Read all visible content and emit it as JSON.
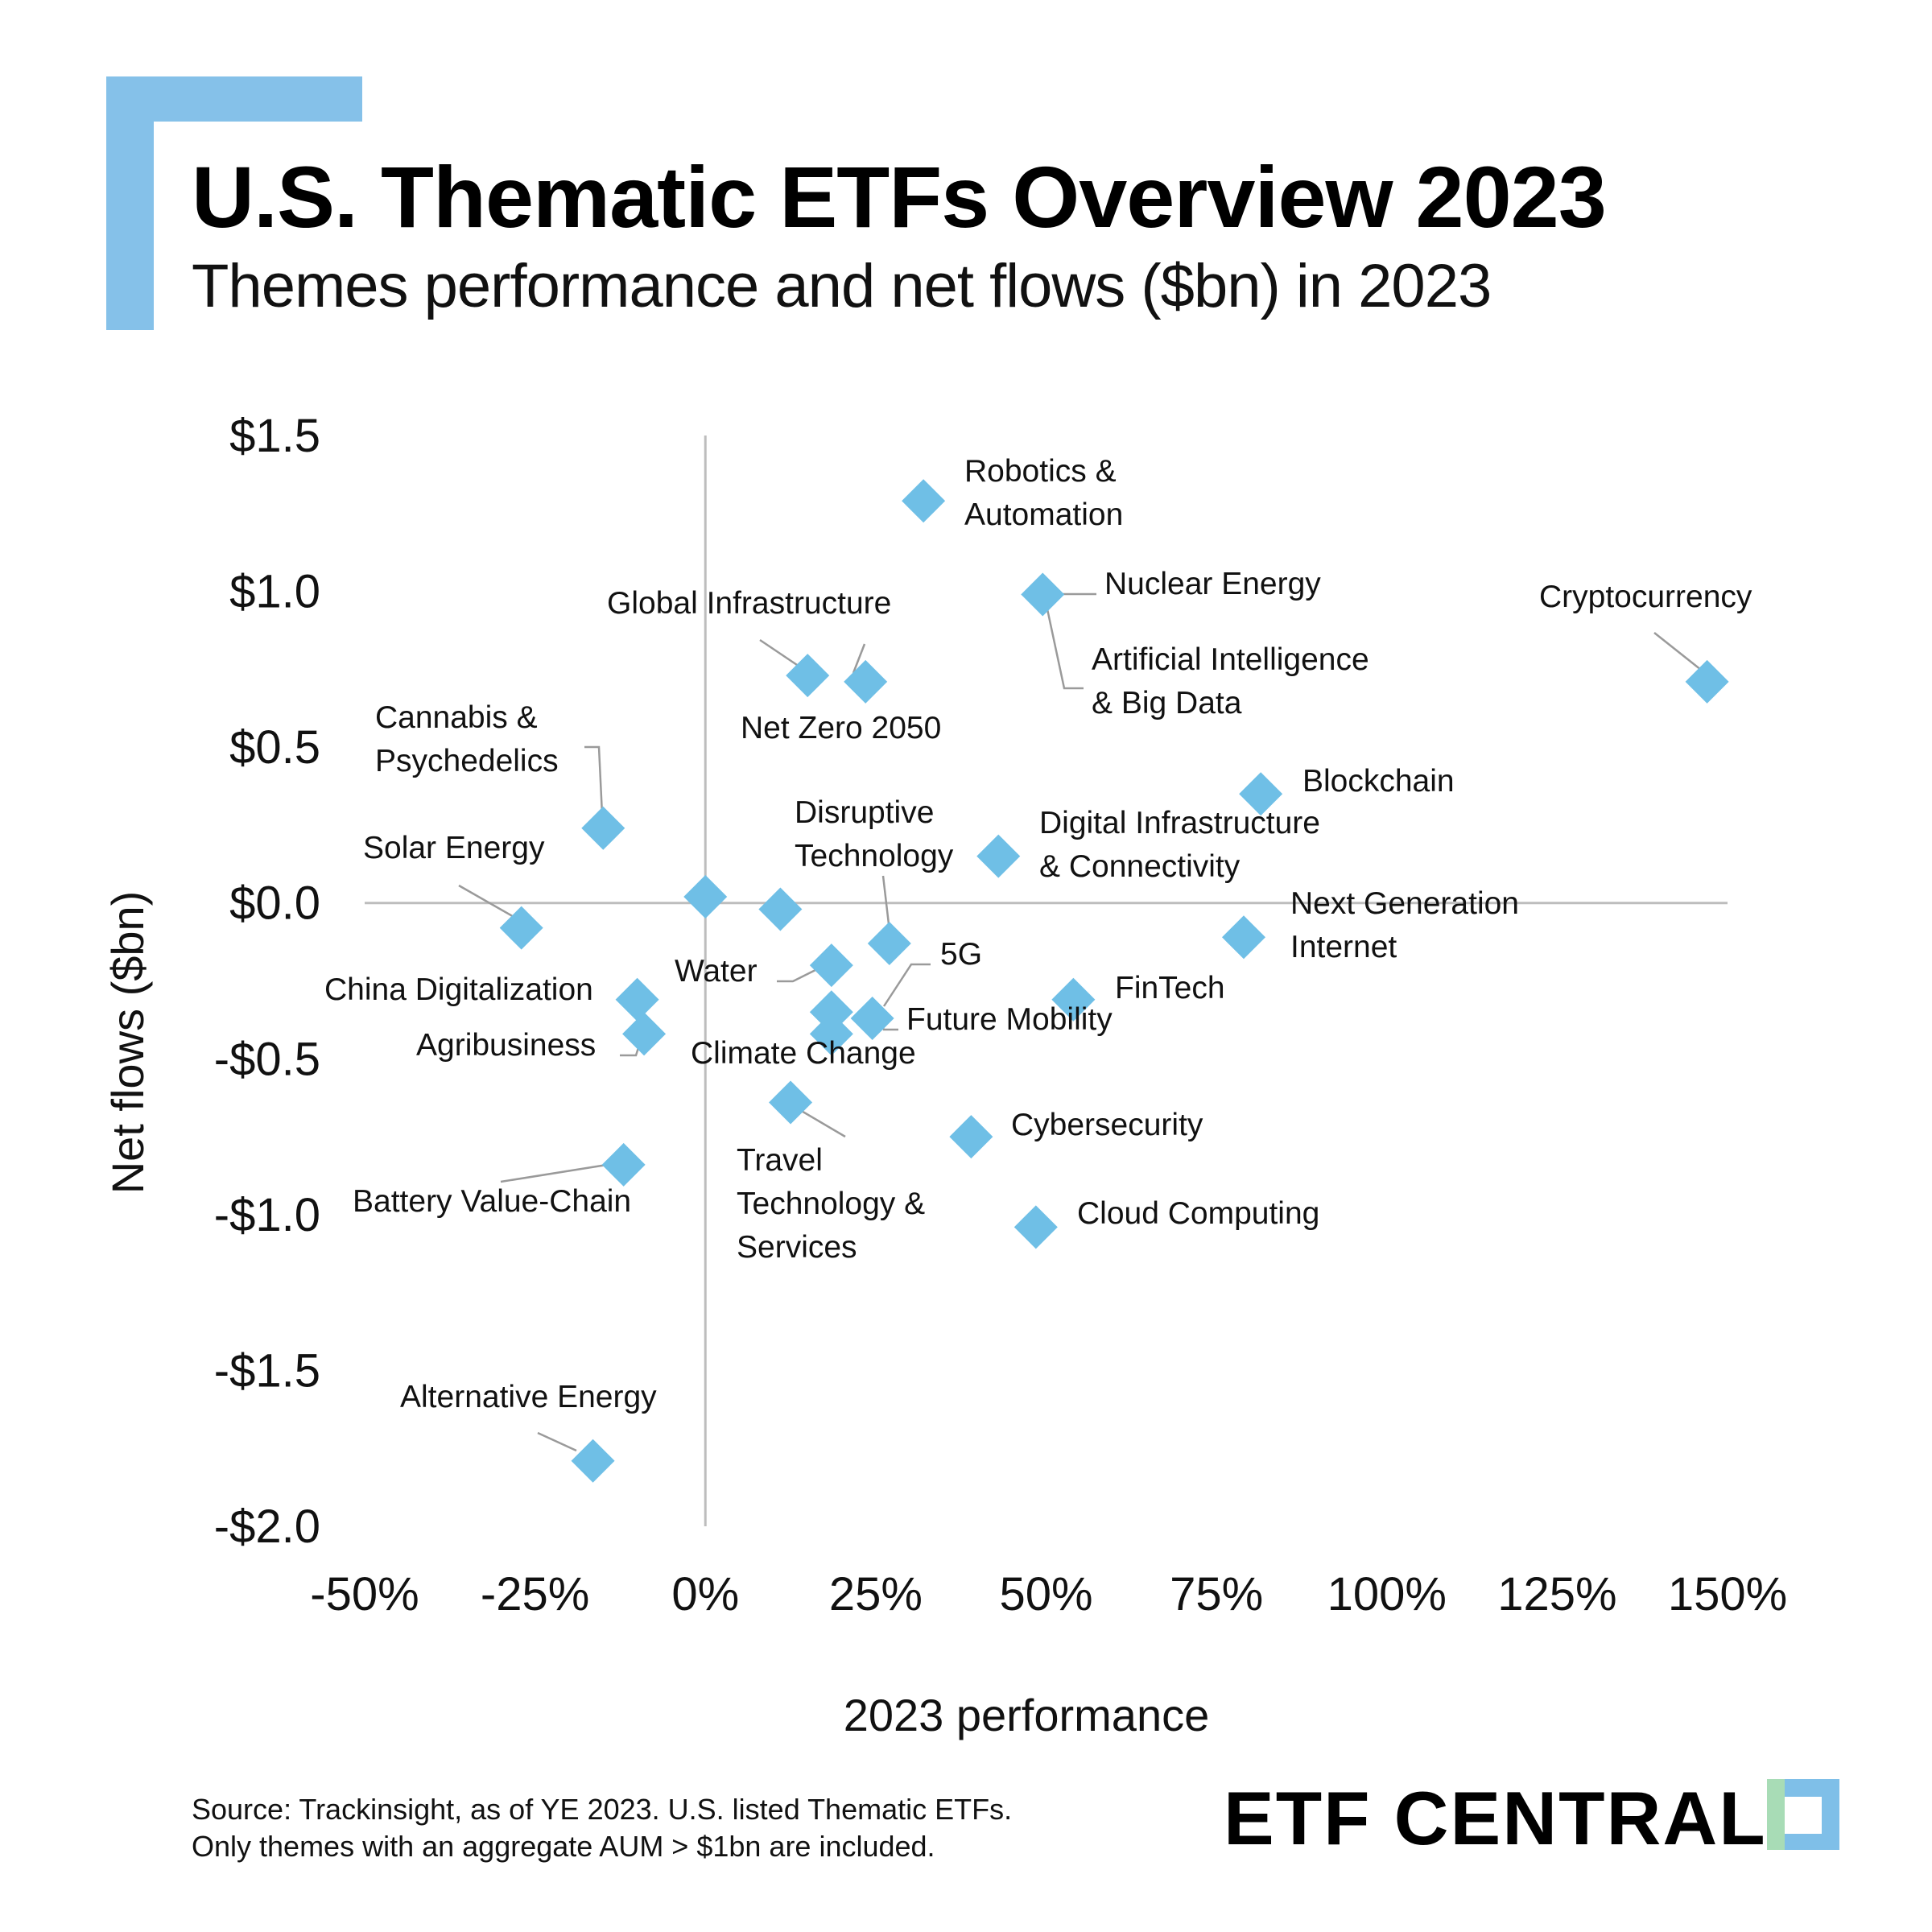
{
  "header": {
    "title": "U.S. Thematic ETFs Overview 2023",
    "subtitle": "Themes performance and net flows ($bn) in 2023"
  },
  "footer": {
    "source_line1": "Source: Trackinsight, as of YE 2023. U.S. listed Thematic ETFs.",
    "source_line2": "Only themes with an aggregate AUM > $1bn are included.",
    "brand": "ETF CENTRAL"
  },
  "colors": {
    "accent": "#85c1e9",
    "marker": "#6fbfe6",
    "axis": "#bdbdbd",
    "leader": "#9a9a9a"
  },
  "chart_data": {
    "type": "scatter",
    "xlabel": "2023 performance",
    "ylabel": "Net flows ($bn)",
    "xlim": [
      -50,
      150
    ],
    "ylim": [
      -2.0,
      1.5
    ],
    "x_ticks": [
      -50,
      -25,
      0,
      25,
      50,
      75,
      100,
      125,
      150
    ],
    "x_tick_labels": [
      "-50%",
      "-25%",
      "0%",
      "25%",
      "50%",
      "75%",
      "100%",
      "125%",
      "150%"
    ],
    "y_ticks": [
      1.5,
      1.0,
      0.5,
      0.0,
      -0.5,
      -1.0,
      -1.5,
      -2.0
    ],
    "y_tick_labels": [
      "$1.5",
      "$1.0",
      "$0.5",
      "$0.0",
      "-$0.5",
      "-$1.0",
      "-$1.5",
      "-$2.0"
    ],
    "marker": "diamond",
    "grid": false,
    "points": [
      {
        "label": "Robotics & Automation",
        "lines": [
          "Robotics &",
          "Automation"
        ],
        "x": 32,
        "y": 1.29
      },
      {
        "label": "Nuclear Energy",
        "lines": [
          "Nuclear Energy"
        ],
        "x": 49.5,
        "y": 0.99
      },
      {
        "label": "Artificial Intelligence & Big Data",
        "lines": [
          "Artificial Intelligence",
          "& Big Data"
        ],
        "x": 49.5,
        "y": 0.99
      },
      {
        "label": "Cryptocurrency",
        "lines": [
          "Cryptocurrency"
        ],
        "x": 147,
        "y": 0.71
      },
      {
        "label": "Global Infrastructure",
        "lines": [
          "Global Infrastructure"
        ],
        "x": 15,
        "y": 0.73
      },
      {
        "label": "Net Zero 2050",
        "lines": [
          "Net Zero 2050"
        ],
        "x": 23.5,
        "y": 0.71
      },
      {
        "label": "Cannabis & Psychedelics",
        "lines": [
          "Cannabis &",
          "Psychedelics"
        ],
        "x": -15,
        "y": 0.24
      },
      {
        "label": "Blockchain",
        "lines": [
          "Blockchain"
        ],
        "x": 81.5,
        "y": 0.35
      },
      {
        "label": "Digital Infrastructure & Connectivity",
        "lines": [
          "Digital Infrastructure",
          "& Connectivity"
        ],
        "x": 43,
        "y": 0.15
      },
      {
        "label": "Disruptive Technology",
        "lines": [
          "Disruptive",
          "Technology"
        ],
        "x": 27,
        "y": -0.13
      },
      {
        "label": "Solar Energy",
        "lines": [
          "Solar Energy"
        ],
        "x": -27,
        "y": -0.08
      },
      {
        "label": "Next Generation Internet",
        "lines": [
          "Next Generation",
          "Internet"
        ],
        "x": 79,
        "y": -0.11
      },
      {
        "label": "Water",
        "lines": [
          "Water"
        ],
        "x": 18.5,
        "y": -0.2
      },
      {
        "label": "5G",
        "lines": [
          "5G"
        ],
        "x": 24.5,
        "y": -0.37
      },
      {
        "label": "China Digitalization",
        "lines": [
          "China Digitalization"
        ],
        "x": -10,
        "y": -0.31
      },
      {
        "label": "Agribusiness",
        "lines": [
          "Agribusiness"
        ],
        "x": -9,
        "y": -0.42
      },
      {
        "label": "FinTech",
        "lines": [
          "FinTech"
        ],
        "x": 54,
        "y": -0.31
      },
      {
        "label": "Future Mobility",
        "lines": [
          "Future Mobility"
        ],
        "x": 18.5,
        "y": -0.35
      },
      {
        "label": "Climate Change",
        "lines": [
          "Climate Change"
        ],
        "x": 18.5,
        "y": -0.42
      },
      {
        "label": "Travel Technology & Services",
        "lines": [
          "Travel",
          "Technology &",
          "Services"
        ],
        "x": 12.5,
        "y": -0.64
      },
      {
        "label": "Cybersecurity",
        "lines": [
          "Cybersecurity"
        ],
        "x": 39,
        "y": -0.75
      },
      {
        "label": "Battery Value-Chain",
        "lines": [
          "Battery Value-Chain"
        ],
        "x": -12,
        "y": -0.84
      },
      {
        "label": "Cloud Computing",
        "lines": [
          "Cloud Computing"
        ],
        "x": 48.5,
        "y": -1.04
      },
      {
        "label": "Alternative Energy",
        "lines": [
          "Alternative Energy"
        ],
        "x": -16.5,
        "y": -1.79
      }
    ],
    "unlabeled_points": [
      {
        "x": 0,
        "y": 0.02
      },
      {
        "x": 11,
        "y": -0.02
      }
    ]
  }
}
